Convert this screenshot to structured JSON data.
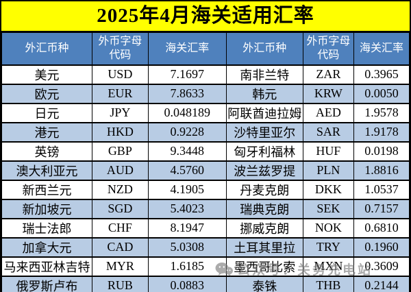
{
  "title": "2025年4月海关适用汇率",
  "table": {
    "headers": [
      "外汇币种",
      "外币字母代码",
      "海关汇率",
      "外汇币种",
      "外币字母代码",
      "海关汇率"
    ],
    "rows": [
      [
        "美元",
        "USD",
        "7.1697",
        "南非兰特",
        "ZAR",
        "0.3965"
      ],
      [
        "欧元",
        "EUR",
        "7.8633",
        "韩元",
        "KRW",
        "0.0050"
      ],
      [
        "日元",
        "JPY",
        "0.048189",
        "阿联酋迪拉姆",
        "AED",
        "1.9578"
      ],
      [
        "港元",
        "HKD",
        "0.9228",
        "沙特里亚尔",
        "SAR",
        "1.9178"
      ],
      [
        "英镑",
        "GBP",
        "9.3448",
        "匈牙利福林",
        "HUF",
        "0.0198"
      ],
      [
        "澳大利亚元",
        "AUD",
        "4.5760",
        "波兰兹罗提",
        "PLN",
        "1.8816"
      ],
      [
        "新西兰元",
        "NZD",
        "4.1905",
        "丹麦克朗",
        "DKK",
        "1.0537"
      ],
      [
        "新加坡元",
        "SGD",
        "5.4023",
        "瑞典克朗",
        "SEK",
        "0.7157"
      ],
      [
        "瑞士法郎",
        "CHF",
        "8.1947",
        "挪威克朗",
        "NOK",
        "0.6810"
      ],
      [
        "加拿大元",
        "CAD",
        "5.0308",
        "土耳其里拉",
        "TRY",
        "0.1960"
      ],
      [
        "马来西亚林吉特",
        "MYR",
        "1.6185",
        "墨西哥比索",
        "MXN",
        "0.3609"
      ],
      [
        "俄罗斯卢布",
        "RUB",
        "0.0883",
        "泰铢",
        "THB",
        "0.2144"
      ]
    ]
  },
  "watermark": {
    "icon": "wechat-icon",
    "text": "公众号：关务充电站"
  },
  "colors": {
    "title_bg": "#FFFF00",
    "header_bg": "#4F81BD",
    "header_text": "#FFFFFF",
    "stripe_bg": "#B8CCE4",
    "border": "#000000"
  }
}
